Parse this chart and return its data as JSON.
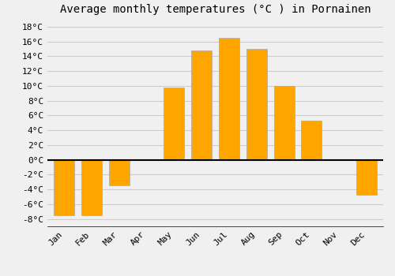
{
  "title": "Average monthly temperatures (°C ) in Pornainen",
  "months": [
    "Jan",
    "Feb",
    "Mar",
    "Apr",
    "May",
    "Jun",
    "Jul",
    "Aug",
    "Sep",
    "Oct",
    "Nov",
    "Dec"
  ],
  "values": [
    -7.5,
    -7.5,
    -3.5,
    0.0,
    9.8,
    14.8,
    16.5,
    15.0,
    10.0,
    5.3,
    0.0,
    -4.7
  ],
  "bar_color": "#FFA500",
  "bar_edge_color": "#aaaaaa",
  "ylim": [
    -9,
    19
  ],
  "yticks": [
    -8,
    -6,
    -4,
    -2,
    0,
    2,
    4,
    6,
    8,
    10,
    12,
    14,
    16,
    18
  ],
  "background_color": "#f0f0f0",
  "grid_color": "#cccccc",
  "title_fontsize": 10,
  "tick_fontsize": 8,
  "zero_line_color": "#000000",
  "bar_width": 0.75
}
